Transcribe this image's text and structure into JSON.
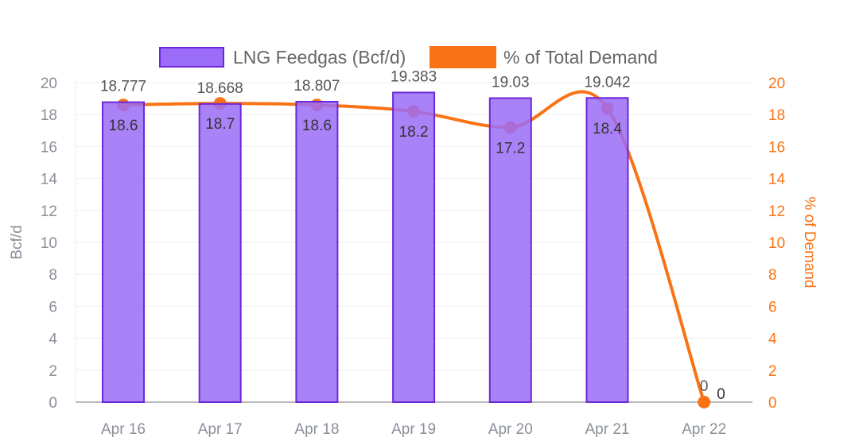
{
  "chart_data": {
    "type": "bar",
    "categories": [
      "Apr 16",
      "Apr 17",
      "Apr 18",
      "Apr 19",
      "Apr 20",
      "Apr 21",
      "Apr 22"
    ],
    "series": [
      {
        "name": "LNG Feedgas (Bcf/d)",
        "type": "bar",
        "axis": "left",
        "color": "#9b6cf7",
        "values": [
          18.777,
          18.668,
          18.807,
          19.383,
          19.03,
          19.042,
          0
        ],
        "labels": [
          "18.777",
          "18.668",
          "18.807",
          "19.383",
          "19.03",
          "19.042",
          "0"
        ]
      },
      {
        "name": "% of Total Demand",
        "type": "line",
        "axis": "right",
        "color": "#f97316",
        "values": [
          18.6,
          18.7,
          18.6,
          18.2,
          17.2,
          18.4,
          0
        ],
        "labels": [
          "18.6",
          "18.7",
          "18.6",
          "18.2",
          "17.2",
          "18.4",
          "0"
        ]
      }
    ],
    "ylabel": "Bcf/d",
    "y2label": "% of Demand",
    "ylim": [
      0,
      20
    ],
    "y2lim": [
      0,
      20
    ],
    "yticks": [
      "0",
      "2",
      "4",
      "6",
      "8",
      "10",
      "12",
      "14",
      "16",
      "18",
      "20"
    ],
    "grid": true,
    "legend": "top"
  }
}
